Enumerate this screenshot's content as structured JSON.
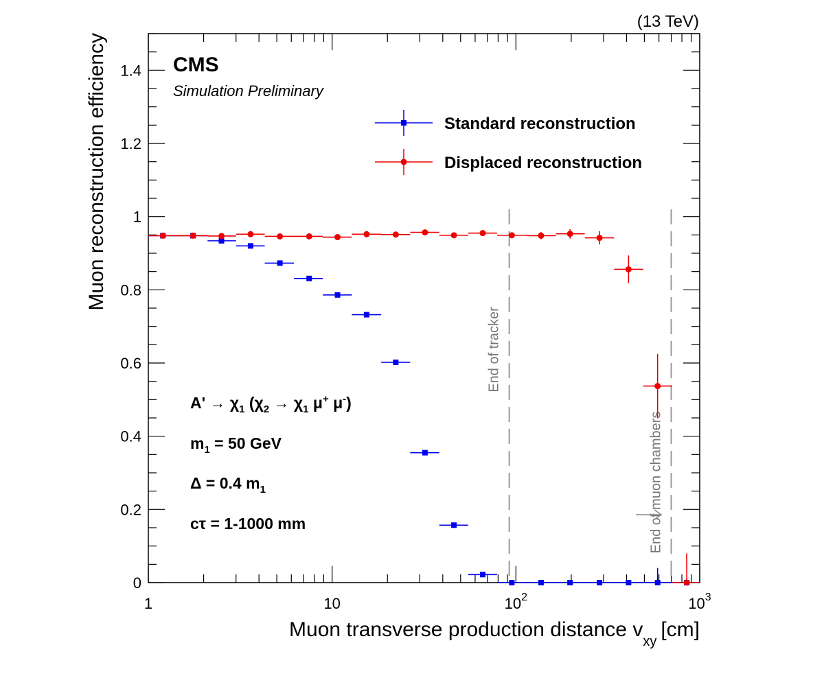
{
  "chart_data": {
    "type": "scatter",
    "energy_label": "(13 TeV)",
    "experiment": "CMS",
    "status": "Simulation Preliminary",
    "xlabel": "Muon transverse production distance v",
    "xlabel_sub": "xy",
    "xlabel_unit": "[cm]",
    "ylabel": "Muon reconstruction efficiency",
    "xscale": "log",
    "xlim": [
      1,
      1000
    ],
    "ylim": [
      0,
      1.5
    ],
    "x_ticks": [
      {
        "value": 1,
        "base": "1",
        "exp": ""
      },
      {
        "value": 10,
        "base": "10",
        "exp": ""
      },
      {
        "value": 100,
        "base": "10",
        "exp": "2"
      },
      {
        "value": 1000,
        "base": "10",
        "exp": "3"
      }
    ],
    "y_ticks": [
      {
        "value": 0,
        "label": "0"
      },
      {
        "value": 0.2,
        "label": "0.2"
      },
      {
        "value": 0.4,
        "label": "0.4"
      },
      {
        "value": 0.6,
        "label": "0.6"
      },
      {
        "value": 0.8,
        "label": "0.8"
      },
      {
        "value": 1.0,
        "label": "1"
      },
      {
        "value": 1.2,
        "label": "1.2"
      },
      {
        "value": 1.4,
        "label": "1.4"
      }
    ],
    "legend_position": "top-right",
    "series": [
      {
        "name": "Standard reconstruction",
        "color": "#0000ee",
        "marker": "square",
        "points": [
          {
            "x": 1.2,
            "xlo": 1.0,
            "xhi": 1.45,
            "y": 0.948,
            "err": 0.004
          },
          {
            "x": 1.75,
            "xlo": 1.45,
            "xhi": 2.1,
            "y": 0.948,
            "err": 0.004
          },
          {
            "x": 2.5,
            "xlo": 2.1,
            "xhi": 3.0,
            "y": 0.934,
            "err": 0.004
          },
          {
            "x": 3.6,
            "xlo": 3.0,
            "xhi": 4.3,
            "y": 0.92,
            "err": 0.004
          },
          {
            "x": 5.2,
            "xlo": 4.3,
            "xhi": 6.2,
            "y": 0.873,
            "err": 0.004
          },
          {
            "x": 7.5,
            "xlo": 6.2,
            "xhi": 8.9,
            "y": 0.831,
            "err": 0.004
          },
          {
            "x": 10.7,
            "xlo": 8.9,
            "xhi": 12.8,
            "y": 0.786,
            "err": 0.004
          },
          {
            "x": 15.4,
            "xlo": 12.8,
            "xhi": 18.5,
            "y": 0.732,
            "err": 0.004
          },
          {
            "x": 22.2,
            "xlo": 18.5,
            "xhi": 26.6,
            "y": 0.602,
            "err": 0.005
          },
          {
            "x": 32.0,
            "xlo": 26.6,
            "xhi": 38.3,
            "y": 0.355,
            "err": 0.005
          },
          {
            "x": 46.0,
            "xlo": 38.3,
            "xhi": 55.0,
            "y": 0.157,
            "err": 0.005
          },
          {
            "x": 66.0,
            "xlo": 55.0,
            "xhi": 79.0,
            "y": 0.022,
            "err": 0.004
          },
          {
            "x": 95.0,
            "xlo": 79.0,
            "xhi": 115.0,
            "y": 0.0,
            "err": 0.002
          },
          {
            "x": 137.0,
            "xlo": 115.0,
            "xhi": 165.0,
            "y": 0.0,
            "err": 0.002
          },
          {
            "x": 197.0,
            "xlo": 165.0,
            "xhi": 237.0,
            "y": 0.0,
            "err": 0.002
          },
          {
            "x": 285.0,
            "xlo": 237.0,
            "xhi": 342.0,
            "y": 0.0,
            "err": 0.002
          },
          {
            "x": 410.0,
            "xlo": 342.0,
            "xhi": 492.0,
            "y": 0.0,
            "err": 0.002
          },
          {
            "x": 590.0,
            "xlo": 492.0,
            "xhi": 708.0,
            "y": 0.0,
            "err": 0.04
          },
          {
            "x": 850.0,
            "xlo": 708.0,
            "xhi": 1000.0,
            "y": 0.0,
            "err": 0.002
          }
        ]
      },
      {
        "name": "Displaced reconstruction",
        "color": "#ee0000",
        "marker": "circle",
        "points": [
          {
            "x": 1.2,
            "xlo": 1.0,
            "xhi": 1.45,
            "y": 0.948,
            "err": 0.004
          },
          {
            "x": 1.75,
            "xlo": 1.45,
            "xhi": 2.1,
            "y": 0.948,
            "err": 0.004
          },
          {
            "x": 2.5,
            "xlo": 2.1,
            "xhi": 3.0,
            "y": 0.947,
            "err": 0.004
          },
          {
            "x": 3.6,
            "xlo": 3.0,
            "xhi": 4.3,
            "y": 0.952,
            "err": 0.004
          },
          {
            "x": 5.2,
            "xlo": 4.3,
            "xhi": 6.2,
            "y": 0.946,
            "err": 0.004
          },
          {
            "x": 7.5,
            "xlo": 6.2,
            "xhi": 8.9,
            "y": 0.946,
            "err": 0.004
          },
          {
            "x": 10.7,
            "xlo": 8.9,
            "xhi": 12.8,
            "y": 0.944,
            "err": 0.004
          },
          {
            "x": 15.4,
            "xlo": 12.8,
            "xhi": 18.5,
            "y": 0.952,
            "err": 0.004
          },
          {
            "x": 22.2,
            "xlo": 18.5,
            "xhi": 26.6,
            "y": 0.951,
            "err": 0.004
          },
          {
            "x": 32.0,
            "xlo": 26.6,
            "xhi": 38.3,
            "y": 0.957,
            "err": 0.004
          },
          {
            "x": 46.0,
            "xlo": 38.3,
            "xhi": 55.0,
            "y": 0.949,
            "err": 0.004
          },
          {
            "x": 66.0,
            "xlo": 55.0,
            "xhi": 79.0,
            "y": 0.955,
            "err": 0.004
          },
          {
            "x": 95.0,
            "xlo": 79.0,
            "xhi": 115.0,
            "y": 0.949,
            "err": 0.005
          },
          {
            "x": 137.0,
            "xlo": 115.0,
            "xhi": 165.0,
            "y": 0.948,
            "err": 0.01
          },
          {
            "x": 197.0,
            "xlo": 165.0,
            "xhi": 237.0,
            "y": 0.953,
            "err": 0.013
          },
          {
            "x": 285.0,
            "xlo": 237.0,
            "xhi": 342.0,
            "y": 0.942,
            "err": 0.018
          },
          {
            "x": 410.0,
            "xlo": 342.0,
            "xhi": 492.0,
            "y": 0.856,
            "err": 0.038
          },
          {
            "x": 590.0,
            "xlo": 492.0,
            "xhi": 708.0,
            "y": 0.537,
            "err": 0.088
          },
          {
            "x": 850.0,
            "xlo": 708.0,
            "xhi": 1000.0,
            "y": 0.0,
            "err": 0.08
          }
        ]
      }
    ],
    "annotations": {
      "process": {
        "main": "A' → χ",
        "s1": "1",
        "mid": " (χ",
        "s2": "2",
        "arrow": " → χ",
        "s3": "1",
        "mu": " μ",
        "plus": "+",
        "mu2": " μ",
        "minus": "-",
        "close": ")"
      },
      "mass": {
        "main": "m",
        "sub": "1",
        "rest": " = 50 GeV"
      },
      "delta": {
        "main": "Δ = 0.4 m",
        "sub": "1"
      },
      "ctau": "cτ = 1-1000 mm"
    },
    "vertical_lines": [
      {
        "x": 92,
        "label": "End of tracker"
      },
      {
        "x": 700,
        "label": "End of muon chambers"
      }
    ]
  }
}
